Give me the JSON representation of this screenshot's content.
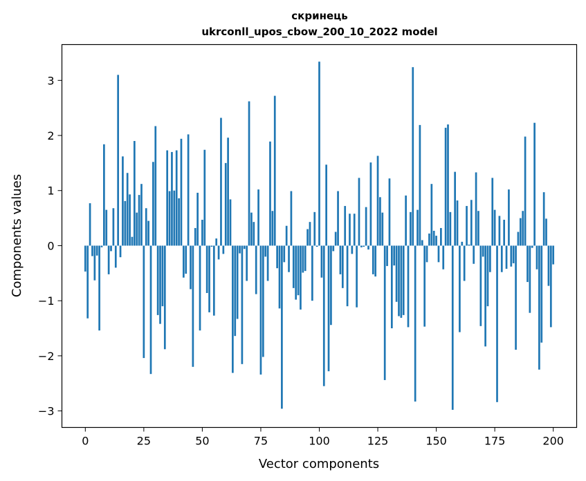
{
  "chart_data": {
    "type": "bar",
    "title_lines": [
      "скринець",
      "ukrconll_upos_cbow_200_10_2022 model"
    ],
    "xlabel": "Vector components",
    "ylabel": "Components values",
    "xlim": [
      -10,
      210
    ],
    "ylim": [
      -3.3,
      3.65
    ],
    "x_ticks": [
      0,
      25,
      50,
      75,
      100,
      125,
      150,
      175,
      200
    ],
    "y_ticks": [
      -3,
      -2,
      -1,
      0,
      1,
      2,
      3
    ],
    "y_tick_labels": [
      "−3",
      "−2",
      "−1",
      "0",
      "1",
      "2",
      "3"
    ],
    "grid": false,
    "bar_color": "#1f77b4",
    "values": [
      -0.47,
      -1.32,
      0.77,
      -0.19,
      -0.63,
      -0.18,
      -1.54,
      -0.03,
      1.84,
      0.65,
      -0.52,
      -0.1,
      0.68,
      -0.4,
      3.1,
      -0.21,
      1.62,
      0.81,
      1.32,
      0.93,
      0.16,
      1.9,
      0.6,
      0.92,
      1.12,
      -2.04,
      0.68,
      0.45,
      -2.33,
      1.52,
      2.17,
      -1.26,
      -1.42,
      -1.1,
      -1.88,
      1.73,
      0.99,
      1.7,
      1.0,
      1.73,
      0.86,
      1.94,
      -0.58,
      -0.51,
      2.02,
      -0.79,
      -2.2,
      0.32,
      0.96,
      -1.54,
      0.47,
      1.74,
      -0.86,
      -1.21,
      -0.02,
      -1.27,
      0.13,
      -0.25,
      2.32,
      -0.15,
      1.5,
      1.96,
      0.84,
      -2.31,
      -1.64,
      -1.33,
      -0.14,
      -2.15,
      -0.06,
      -0.64,
      2.62,
      0.6,
      0.43,
      -0.88,
      1.02,
      -2.34,
      -2.02,
      -0.2,
      -0.64,
      1.89,
      0.63,
      2.72,
      -0.41,
      -1.14,
      -2.96,
      -0.3,
      0.36,
      -0.48,
      0.99,
      -0.77,
      -0.98,
      -0.9,
      -1.16,
      -0.49,
      -0.46,
      0.3,
      0.43,
      -1.0,
      0.61,
      -0.02,
      3.34,
      -0.58,
      -2.55,
      1.47,
      -2.28,
      -1.44,
      -0.1,
      0.25,
      0.99,
      -0.52,
      -0.77,
      0.72,
      -1.1,
      0.58,
      -0.15,
      0.58,
      -1.12,
      1.23,
      -0.03,
      -0.02,
      0.7,
      -0.07,
      1.51,
      -0.52,
      -0.56,
      1.63,
      0.88,
      0.6,
      -2.44,
      -0.37,
      1.22,
      -1.5,
      -0.36,
      -1.02,
      -1.28,
      -1.31,
      -1.26,
      0.91,
      -1.48,
      0.61,
      3.24,
      -2.83,
      0.65,
      2.19,
      0.1,
      -1.47,
      -0.3,
      0.22,
      1.12,
      0.27,
      0.18,
      -0.3,
      0.32,
      -0.43,
      2.14,
      2.2,
      0.61,
      -2.98,
      1.34,
      0.82,
      -1.57,
      0.07,
      -0.64,
      0.72,
      0.02,
      0.83,
      -0.33,
      1.33,
      0.63,
      -1.46,
      -0.2,
      -1.83,
      -1.1,
      -0.48,
      1.23,
      0.65,
      -2.84,
      0.54,
      -0.48,
      0.47,
      -0.42,
      1.02,
      -0.38,
      -0.32,
      -1.89,
      0.25,
      0.5,
      0.63,
      1.98,
      -0.66,
      -1.22,
      -0.04,
      2.23,
      -0.43,
      -2.25,
      -1.76,
      0.97,
      0.49,
      -0.73,
      -1.48,
      -0.34
    ]
  }
}
